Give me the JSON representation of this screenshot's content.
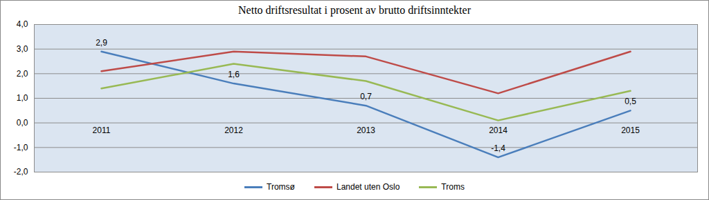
{
  "chart_data": {
    "type": "line",
    "title": "Netto driftsresultat i prosent av brutto driftsinntekter",
    "categories": [
      "2011",
      "2012",
      "2013",
      "2014",
      "2015"
    ],
    "series": [
      {
        "name": "Tromsø",
        "color": "#4a7ebb",
        "values": [
          2.9,
          1.6,
          0.7,
          -1.4,
          0.5
        ],
        "data_labels": true,
        "value_labels": [
          "2,9",
          "1,6",
          "0,7",
          "-1,4",
          "0,5"
        ]
      },
      {
        "name": "Landet uten Oslo",
        "color": "#be4b48",
        "values": [
          2.1,
          2.9,
          2.7,
          1.2,
          2.9
        ]
      },
      {
        "name": "Troms",
        "color": "#98b954",
        "values": [
          1.4,
          2.4,
          1.7,
          0.1,
          1.3
        ]
      }
    ],
    "ylim": [
      -2,
      4
    ],
    "yticks": [
      {
        "value": -2,
        "label": "-2,0"
      },
      {
        "value": -1,
        "label": "-1,0"
      },
      {
        "value": 0,
        "label": "0,0"
      },
      {
        "value": 1,
        "label": "1,0"
      },
      {
        "value": 2,
        "label": "2,0"
      },
      {
        "value": 3,
        "label": "3,0"
      },
      {
        "value": 4,
        "label": "4,0"
      }
    ],
    "grid": true,
    "legend": "bottom"
  }
}
